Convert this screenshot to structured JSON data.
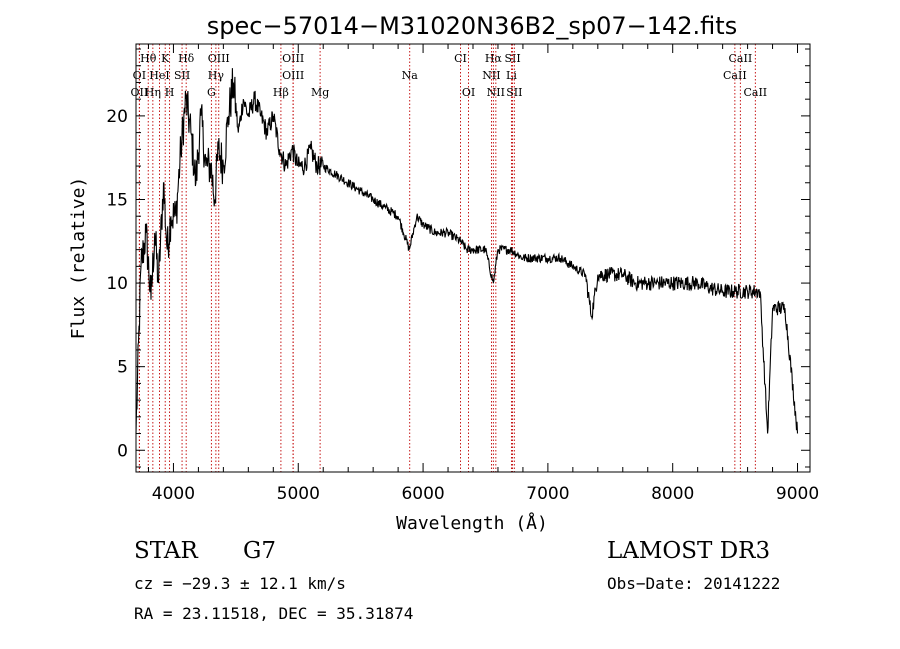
{
  "chart_data": {
    "type": "line",
    "title": "spec−57014−M31020N36B2_sp07−142.fits",
    "xlabel": "Wavelength (Å)",
    "ylabel": "Flux (relative)",
    "xlim": [
      3700,
      9100
    ],
    "ylim": [
      -1.3,
      24.3
    ],
    "xticks": [
      4000,
      5000,
      6000,
      7000,
      8000,
      9000
    ],
    "yticks": [
      0,
      5,
      10,
      15,
      20
    ],
    "series": [
      {
        "name": "spectrum",
        "x": [
          3700,
          3740,
          3780,
          3820,
          3850,
          3880,
          3920,
          3950,
          3980,
          4020,
          4060,
          4100,
          4140,
          4180,
          4220,
          4260,
          4300,
          4330,
          4360,
          4400,
          4440,
          4480,
          4520,
          4560,
          4600,
          4650,
          4700,
          4750,
          4800,
          4850,
          4900,
          4950,
          5000,
          5050,
          5100,
          5150,
          5200,
          5300,
          5400,
          5500,
          5600,
          5700,
          5800,
          5890,
          5950,
          6000,
          6100,
          6200,
          6300,
          6350,
          6400,
          6500,
          6563,
          6600,
          6700,
          6800,
          6900,
          7000,
          7100,
          7200,
          7300,
          7350,
          7400,
          7500,
          7600,
          7700,
          7800,
          7900,
          8000,
          8100,
          8200,
          8300,
          8400,
          8500,
          8600,
          8700,
          8760,
          8800,
          8900,
          9000
        ],
        "y": [
          1,
          11,
          13,
          9,
          13,
          10,
          16,
          12,
          14,
          14,
          18,
          21,
          19,
          16,
          20,
          17,
          17,
          15,
          18,
          17,
          20,
          22,
          19,
          21,
          20,
          21,
          20,
          19,
          20,
          18,
          17,
          18,
          17,
          17,
          18,
          17,
          17,
          16.5,
          16,
          15.5,
          15,
          14.5,
          14,
          12,
          14,
          13.5,
          13,
          13,
          12.5,
          12,
          12,
          12,
          10,
          12,
          12,
          11.5,
          11.5,
          11.5,
          11.5,
          11,
          10.5,
          8,
          10.5,
          10.5,
          10.5,
          10,
          10,
          10,
          10,
          10,
          10,
          9.7,
          9.5,
          9.5,
          9.5,
          9.5,
          1,
          8.5,
          8.5,
          1
        ]
      }
    ],
    "spectral_lines": [
      {
        "label": "Hθ",
        "wl": 3798,
        "row": 0
      },
      {
        "label": "K",
        "wl": 3934,
        "row": 0
      },
      {
        "label": "Hδ",
        "wl": 4102,
        "row": 0
      },
      {
        "label": "OIII",
        "wl": 4363,
        "row": 0
      },
      {
        "label": "OIII",
        "wl": 4959,
        "row": 0
      },
      {
        "label": "CI",
        "wl": 6300,
        "row": 0
      },
      {
        "label": "Hα",
        "wl": 6563,
        "row": 0
      },
      {
        "label": "SII",
        "wl": 6717,
        "row": 0
      },
      {
        "label": "CaII",
        "wl": 8542,
        "row": 0
      },
      {
        "label": "OI",
        "wl": 3727,
        "row": 1
      },
      {
        "label": "HeI",
        "wl": 3888,
        "row": 1
      },
      {
        "label": "SII",
        "wl": 4069,
        "row": 1
      },
      {
        "label": "Hγ",
        "wl": 4340,
        "row": 1
      },
      {
        "label": "OIII",
        "wl": 4959,
        "row": 1
      },
      {
        "label": "Na",
        "wl": 5893,
        "row": 1
      },
      {
        "label": "NII",
        "wl": 6548,
        "row": 1
      },
      {
        "label": "Li",
        "wl": 6708,
        "row": 1
      },
      {
        "label": "CaII",
        "wl": 8498,
        "row": 1
      },
      {
        "label": "OII",
        "wl": 3727,
        "row": 2
      },
      {
        "label": "Hη",
        "wl": 3835,
        "row": 2
      },
      {
        "label": "H",
        "wl": 3969,
        "row": 2
      },
      {
        "label": "G",
        "wl": 4304,
        "row": 2
      },
      {
        "label": "Hβ",
        "wl": 4861,
        "row": 2
      },
      {
        "label": "Mg",
        "wl": 5175,
        "row": 2
      },
      {
        "label": "OI",
        "wl": 6364,
        "row": 2
      },
      {
        "label": "NII",
        "wl": 6583,
        "row": 2
      },
      {
        "label": "SII",
        "wl": 6731,
        "row": 2
      },
      {
        "label": "CaII",
        "wl": 8662,
        "row": 2
      }
    ]
  },
  "info": {
    "class": "STAR",
    "subclass": "G7",
    "survey": "LAMOST DR3",
    "cz": "cz = −29.3 ± 12.1 km/s",
    "obs_date": "Obs−Date: 20141222",
    "radec": "RA =  23.11518, DEC =  35.31874"
  }
}
